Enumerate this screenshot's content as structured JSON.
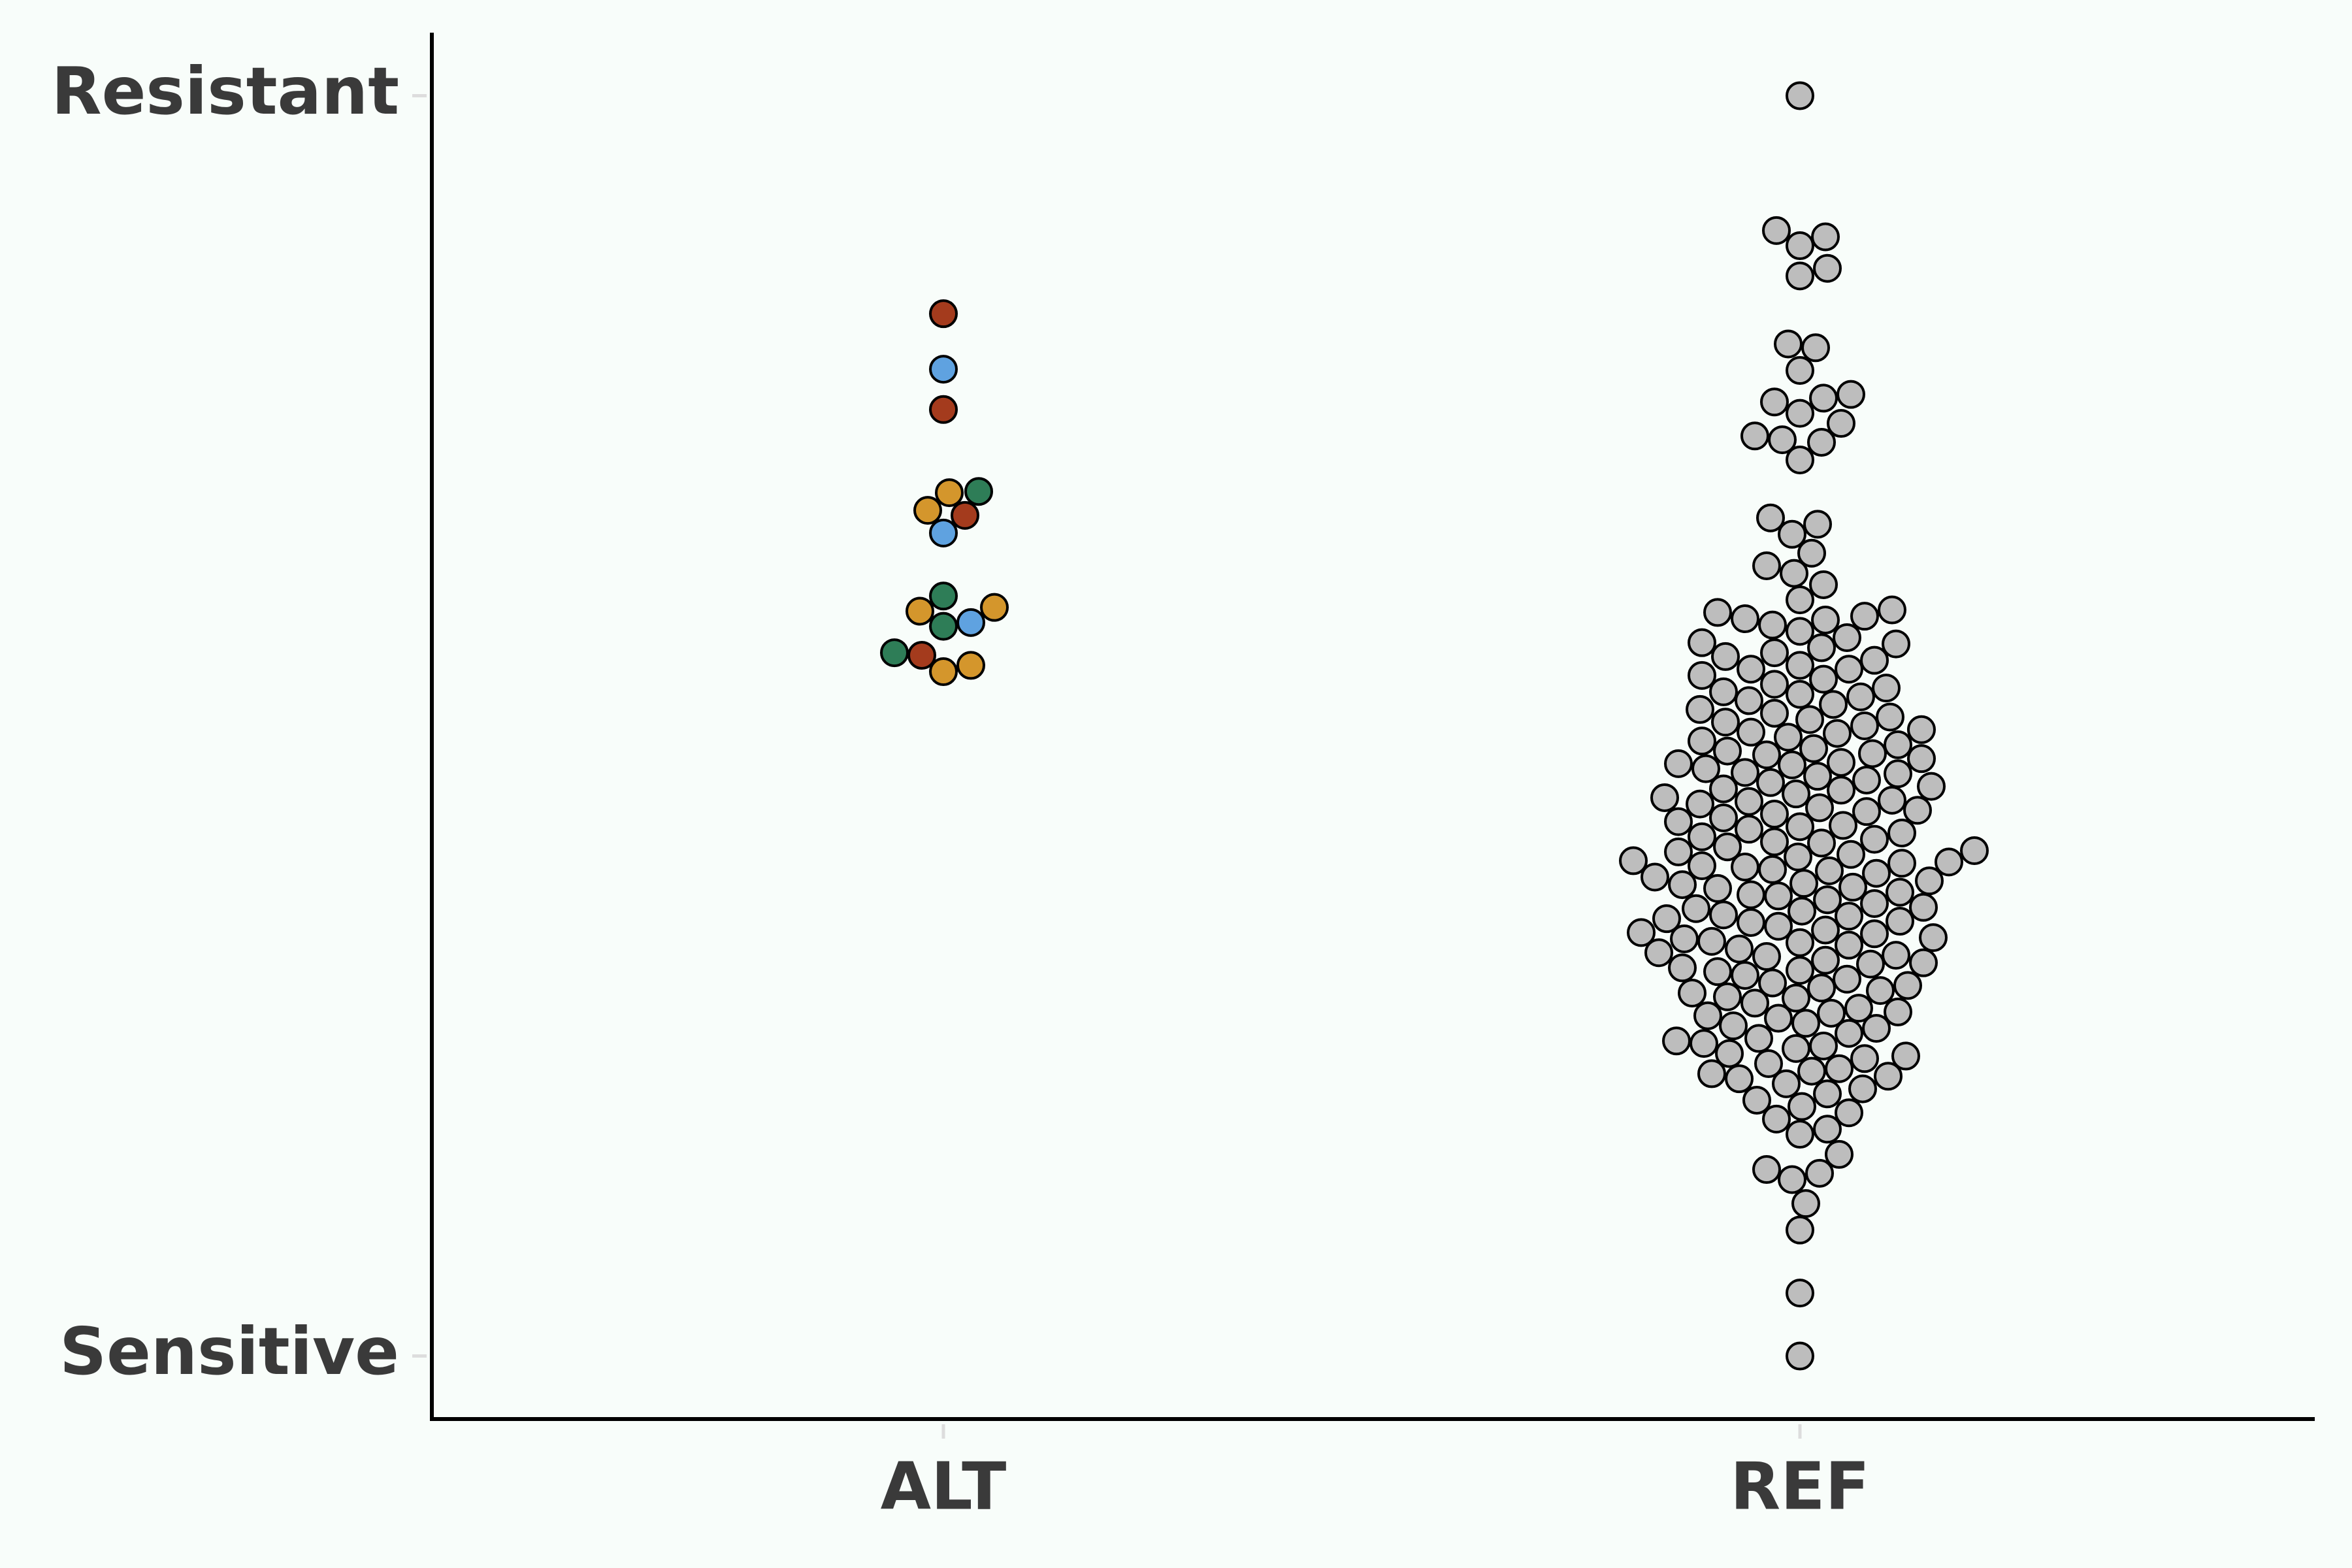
{
  "chart_data": {
    "type": "beeswarm",
    "categories": [
      "ALT",
      "REF"
    ],
    "ylim": [
      -0.05,
      1.05
    ],
    "yticks": [
      {
        "value": 0,
        "label": "Sensitive"
      },
      {
        "value": 1,
        "label": "Resistant"
      }
    ],
    "series": [
      {
        "color": "#a43b1d",
        "values": [
          [
            0.827,
            0.751,
            0.667,
            0.556
          ],
          []
        ]
      },
      {
        "color": "#5fa2e0",
        "values": [
          [
            0.783,
            0.653,
            0.582
          ],
          []
        ]
      },
      {
        "color": "#d4962c",
        "values": [
          [
            0.685,
            0.671,
            0.591,
            0.594,
            0.548,
            0.543
          ],
          []
        ]
      },
      {
        "color": "#2e7d57",
        "values": [
          [
            0.686,
            0.603,
            0.579,
            0.558
          ],
          []
        ]
      },
      {
        "color": "#bdbdbd",
        "values": [
          [],
          [
            1.0,
            0.893,
            0.888,
            0.881,
            0.863,
            0.857,
            0.803,
            0.8,
            0.782,
            0.763,
            0.76,
            0.757,
            0.748,
            0.74,
            0.73,
            0.727,
            0.725,
            0.711,
            0.665,
            0.66,
            0.652,
            0.637,
            0.627,
            0.621,
            0.612,
            0.6,
            0.592,
            0.59,
            0.587,
            0.585,
            0.584,
            0.58,
            0.575,
            0.57,
            0.566,
            0.562,
            0.558,
            0.555,
            0.552,
            0.548,
            0.545,
            0.54,
            0.537,
            0.533,
            0.53,
            0.527,
            0.523,
            0.52,
            0.517,
            0.513,
            0.51,
            0.507,
            0.503,
            0.5,
            0.497,
            0.494,
            0.491,
            0.488,
            0.485,
            0.482,
            0.48,
            0.477,
            0.474,
            0.471,
            0.469,
            0.466,
            0.463,
            0.46,
            0.457,
            0.455,
            0.452,
            0.449,
            0.446,
            0.443,
            0.441,
            0.438,
            0.435,
            0.432,
            0.43,
            0.427,
            0.424,
            0.421,
            0.418,
            0.415,
            0.412,
            0.41,
            0.407,
            0.404,
            0.401,
            0.398,
            0.396,
            0.393,
            0.391,
            0.388,
            0.386,
            0.383,
            0.38,
            0.377,
            0.374,
            0.371,
            0.368,
            0.365,
            0.362,
            0.359,
            0.356,
            0.353,
            0.35,
            0.347,
            0.344,
            0.341,
            0.338,
            0.335,
            0.332,
            0.329,
            0.326,
            0.323,
            0.32,
            0.317,
            0.314,
            0.311,
            0.308,
            0.305,
            0.302,
            0.299,
            0.296,
            0.292,
            0.288,
            0.284,
            0.28,
            0.276,
            0.272,
            0.268,
            0.264,
            0.26,
            0.256,
            0.252,
            0.248,
            0.244,
            0.24,
            0.236,
            0.232,
            0.228,
            0.224,
            0.22,
            0.216,
            0.212,
            0.208,
            0.203,
            0.198,
            0.193,
            0.188,
            0.18,
            0.176,
            0.16,
            0.148,
            0.145,
            0.14,
            0.121,
            0.1,
            0.05,
            0.0,
            0.495,
            0.47,
            0.45,
            0.44,
            0.42,
            0.4,
            0.392,
            0.385,
            0.375,
            0.366,
            0.355,
            0.345,
            0.336,
            0.328,
            0.318,
            0.306,
            0.294,
            0.285,
            0.273,
            0.262,
            0.25,
            0.238,
            0.226,
            0.478,
            0.462,
            0.433,
            0.408,
            0.389,
            0.372,
            0.349,
            0.331,
            0.312,
            0.29,
            0.27,
            0.246,
            0.222,
            0.505,
            0.525,
            0.545,
            0.565
          ]
        ]
      }
    ]
  }
}
